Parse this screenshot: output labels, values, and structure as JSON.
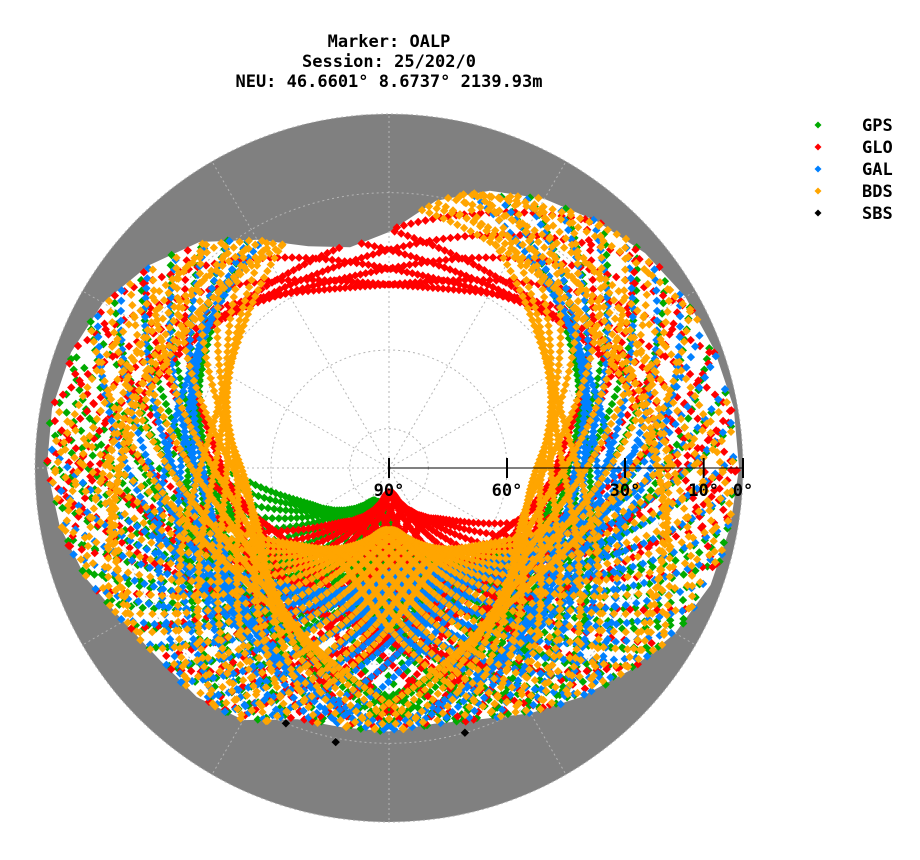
{
  "chart_data": {
    "type": "scatter",
    "projection": "polar-skyplot",
    "title_lines": [
      "Marker: OALP",
      "Session: 25/202/0",
      "NEU: 46.6601° 8.6737° 2139.93m"
    ],
    "radial_axis": {
      "quantity": "elevation",
      "range": [
        90,
        0
      ],
      "ticks": [
        90,
        60,
        30,
        10,
        0
      ],
      "tick_labels": [
        "90°",
        "60°",
        "30°",
        "10°",
        "0°"
      ]
    },
    "angular_axis": {
      "quantity": "azimuth",
      "range": [
        0,
        360
      ],
      "zero": "top",
      "direction": "clockwise"
    },
    "grid": true,
    "colors": {
      "background": "#ffffff",
      "obstruction_mask": "#808080",
      "grid": "#b4b4b4",
      "axis": "#000000"
    },
    "horizon_mask_elevation": [
      [
        0,
        30
      ],
      [
        10,
        21
      ],
      [
        20,
        15
      ],
      [
        30,
        11
      ],
      [
        40,
        8
      ],
      [
        50,
        5
      ],
      [
        60,
        3
      ],
      [
        70,
        2
      ],
      [
        80,
        1
      ],
      [
        90,
        1
      ],
      [
        100,
        2
      ],
      [
        110,
        3
      ],
      [
        120,
        6
      ],
      [
        130,
        10
      ],
      [
        140,
        14
      ],
      [
        150,
        18
      ],
      [
        160,
        22
      ],
      [
        170,
        24
      ],
      [
        180,
        23
      ],
      [
        190,
        23
      ],
      [
        200,
        22
      ],
      [
        210,
        16
      ],
      [
        220,
        14
      ],
      [
        230,
        14
      ],
      [
        240,
        12
      ],
      [
        250,
        8
      ],
      [
        260,
        5
      ],
      [
        270,
        3
      ],
      [
        280,
        3
      ],
      [
        290,
        4
      ],
      [
        300,
        6
      ],
      [
        310,
        10
      ],
      [
        320,
        15
      ],
      [
        330,
        23
      ],
      [
        340,
        30
      ],
      [
        350,
        33
      ],
      [
        360,
        30
      ]
    ],
    "legend": {
      "placement": "top-right",
      "entries": [
        {
          "name": "GPS",
          "color": "#00aa00"
        },
        {
          "name": "GLO",
          "color": "#ff0000"
        },
        {
          "name": "GAL",
          "color": "#0080ff"
        },
        {
          "name": "BDS",
          "color": "#ffa500"
        },
        {
          "name": "SBS",
          "color": "#000000"
        }
      ]
    },
    "series": [
      {
        "name": "GPS",
        "color": "#00aa00",
        "tracks": [
          {
            "inc": 55,
            "max_el": 70,
            "az_center": 180,
            "count": 14
          },
          {
            "inc": 55,
            "max_el": 82,
            "az_center": 200,
            "count": 12
          },
          {
            "inc": 55,
            "max_el": 50,
            "az_center": 115,
            "count": 8
          },
          {
            "inc": 55,
            "max_el": 50,
            "az_center": 245,
            "count": 8
          }
        ]
      },
      {
        "name": "GLO",
        "color": "#ff0000",
        "tracks": [
          {
            "inc": 65,
            "max_el": 85,
            "az_center": 178,
            "count": 10
          },
          {
            "inc": 65,
            "max_el": 45,
            "az_center": 0,
            "count": 8
          },
          {
            "inc": 65,
            "max_el": 60,
            "az_center": 135,
            "count": 6
          },
          {
            "inc": 65,
            "max_el": 60,
            "az_center": 225,
            "count": 6
          }
        ]
      },
      {
        "name": "GAL",
        "color": "#0080ff",
        "tracks": [
          {
            "inc": 56,
            "max_el": 65,
            "az_center": 170,
            "count": 14
          },
          {
            "inc": 56,
            "max_el": 45,
            "az_center": 105,
            "count": 8
          },
          {
            "inc": 56,
            "max_el": 45,
            "az_center": 255,
            "count": 8
          }
        ]
      },
      {
        "name": "BDS",
        "color": "#ffa500",
        "tracks": [
          {
            "inc": 55,
            "max_el": 75,
            "az_center": 180,
            "count": 16
          },
          {
            "inc": 55,
            "max_el": 55,
            "az_center": 105,
            "count": 10
          },
          {
            "inc": 55,
            "max_el": 55,
            "az_center": 255,
            "count": 10
          },
          {
            "inc": 55,
            "max_el": 30,
            "az_center": 45,
            "count": 6
          },
          {
            "inc": 55,
            "max_el": 30,
            "az_center": 315,
            "count": 6
          }
        ]
      },
      {
        "name": "SBS",
        "color": "#000000",
        "points": [
          {
            "az": 202,
            "el": 20
          },
          {
            "az": 191,
            "el": 19
          },
          {
            "az": 164,
            "el": 20
          }
        ]
      }
    ]
  }
}
